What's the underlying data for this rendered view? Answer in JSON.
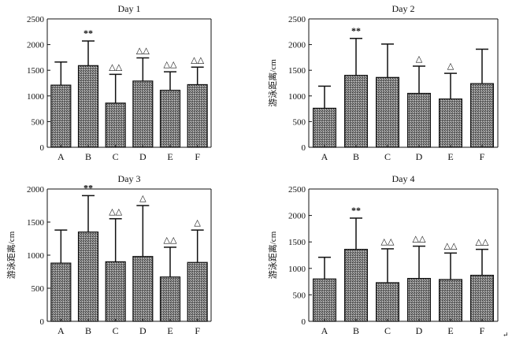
{
  "figure": {
    "corner_mark": "↵"
  },
  "chart_data": [
    {
      "type": "bar",
      "title": "Day 1",
      "xlabel": "",
      "ylabel": "",
      "ylim": [
        0,
        2500
      ],
      "yticks": [
        "0",
        "500",
        "1000",
        "1500",
        "2000",
        "2500"
      ],
      "categories": [
        "A",
        "B",
        "C",
        "D",
        "E",
        "F"
      ],
      "values": [
        1210,
        1590,
        860,
        1290,
        1110,
        1220
      ],
      "errors": [
        450,
        480,
        560,
        450,
        360,
        340
      ],
      "markers": [
        "",
        "**",
        "△△",
        "△△",
        "△△",
        "△△"
      ]
    },
    {
      "type": "bar",
      "title": "Day 2",
      "xlabel": "",
      "ylabel": "游泳距离/cm",
      "ylim": [
        0,
        2500
      ],
      "yticks": [
        "0",
        "500",
        "1000",
        "1500",
        "2000",
        "2500"
      ],
      "categories": [
        "A",
        "B",
        "C",
        "D",
        "E",
        "F"
      ],
      "values": [
        760,
        1400,
        1360,
        1050,
        940,
        1240
      ],
      "errors": [
        430,
        720,
        650,
        530,
        500,
        670
      ],
      "markers": [
        "",
        "**",
        "",
        "△",
        "△",
        ""
      ]
    },
    {
      "type": "bar",
      "title": "Day 3",
      "xlabel": "",
      "ylabel": "游泳距离/cm",
      "ylim": [
        0,
        2000
      ],
      "yticks": [
        "0",
        "500",
        "1000",
        "1500",
        "2000"
      ],
      "categories": [
        "A",
        "B",
        "C",
        "D",
        "E",
        "F"
      ],
      "values": [
        880,
        1350,
        900,
        980,
        670,
        890
      ],
      "errors": [
        500,
        550,
        650,
        770,
        450,
        490
      ],
      "markers": [
        "",
        "**",
        "△△",
        "△",
        "△△",
        "△"
      ]
    },
    {
      "type": "bar",
      "title": "Day 4",
      "xlabel": "",
      "ylabel": "游泳距离/cm",
      "ylim": [
        0,
        2500
      ],
      "yticks": [
        "0",
        "500",
        "1000",
        "1500",
        "2000",
        "2500"
      ],
      "categories": [
        "A",
        "B",
        "C",
        "D",
        "E",
        "F"
      ],
      "values": [
        800,
        1360,
        730,
        810,
        790,
        870
      ],
      "errors": [
        410,
        590,
        640,
        610,
        500,
        490
      ],
      "markers": [
        "",
        "**",
        "△△",
        "△△",
        "△△",
        "△△"
      ]
    }
  ]
}
